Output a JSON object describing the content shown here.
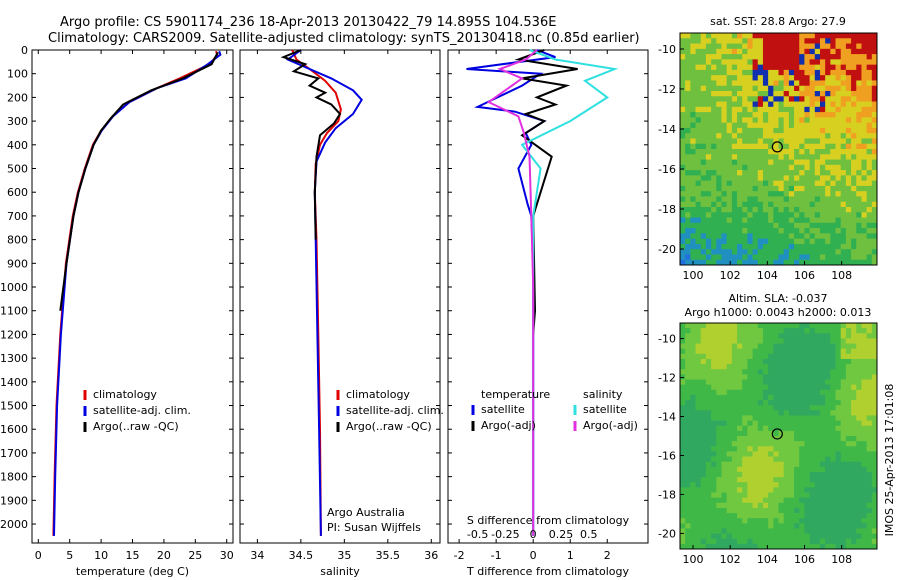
{
  "header": {
    "title_line1": "Argo profile: CS 5901174_236 18-Apr-2013 20130422_79 14.895S 104.536E",
    "title_line2": "Climatology: CARS2009. Satellite-adjusted climatology: synTS_20130418.nc (0.85d earlier)"
  },
  "colors": {
    "climatology": "#e00000",
    "satellite": "#0000e0",
    "argo": "#000000",
    "satellite_s": "#30e0e0",
    "argo_s": "#e030e0"
  },
  "chart_data": [
    {
      "type": "line",
      "id": "temperature",
      "xlabel": "temperature (deg C)",
      "ylabel": "",
      "xlim": [
        -1,
        31
      ],
      "ylim": [
        2080,
        0
      ],
      "xticks": [
        0,
        5,
        10,
        15,
        20,
        25,
        30
      ],
      "yticks": [
        0,
        100,
        200,
        300,
        400,
        500,
        600,
        700,
        800,
        900,
        1000,
        1100,
        1200,
        1300,
        1400,
        1500,
        1600,
        1700,
        1800,
        1900,
        2000
      ],
      "legend": [
        "climatology",
        "satellite-adj. clim.",
        "Argo(..raw -QC)"
      ],
      "series": [
        {
          "name": "climatology",
          "color": "#e00000",
          "x": [
            28.3,
            28.5,
            27.3,
            22.5,
            19.0,
            14.5,
            11.8,
            10.0,
            8.7,
            7.4,
            6.3,
            5.5,
            4.4,
            3.5,
            2.9,
            2.6,
            2.4
          ],
          "y": [
            5,
            20,
            60,
            120,
            160,
            220,
            280,
            340,
            400,
            500,
            600,
            700,
            900,
            1200,
            1500,
            1800,
            2050
          ]
        },
        {
          "name": "satellite-adj. clim.",
          "color": "#0000e0",
          "x": [
            28.8,
            29.0,
            27.0,
            23.5,
            19.0,
            14.5,
            11.9,
            10.1,
            8.8,
            7.5,
            6.4,
            5.6,
            4.5,
            3.6,
            3.0,
            2.7,
            2.5
          ],
          "y": [
            5,
            20,
            60,
            120,
            160,
            220,
            280,
            340,
            400,
            500,
            600,
            700,
            900,
            1200,
            1500,
            1800,
            2050
          ]
        },
        {
          "name": "Argo(..raw -QC)",
          "color": "#000000",
          "x": [
            28.6,
            28.3,
            27.6,
            23.0,
            18.0,
            13.5,
            11.5,
            10.0,
            8.8,
            7.5,
            6.4,
            5.6,
            4.5,
            3.5
          ],
          "y": [
            10,
            25,
            60,
            120,
            170,
            230,
            290,
            340,
            400,
            500,
            600,
            700,
            900,
            1100
          ]
        }
      ]
    },
    {
      "type": "line",
      "id": "salinity",
      "xlabel": "salinity",
      "ylabel": "",
      "xlim": [
        33.8,
        36.1
      ],
      "ylim": [
        2080,
        0
      ],
      "xticks": [
        34,
        34.5,
        35,
        35.5,
        36
      ],
      "legend": [
        "climatology",
        "satellite-adj. clim.",
        "Argo(..raw -QC)"
      ],
      "annotation": [
        "Argo Australia",
        "PI: Susan Wijffels"
      ],
      "series": [
        {
          "name": "climatology",
          "color": "#e00000",
          "x": [
            34.4,
            34.45,
            34.6,
            34.78,
            34.9,
            34.96,
            34.93,
            34.8,
            34.72,
            34.67,
            34.66,
            34.68,
            34.7,
            34.72,
            34.73
          ],
          "y": [
            0,
            40,
            80,
            130,
            180,
            250,
            300,
            350,
            400,
            480,
            600,
            800,
            1200,
            1600,
            2050
          ]
        },
        {
          "name": "satellite-adj. clim.",
          "color": "#0000e0",
          "x": [
            34.5,
            34.35,
            34.6,
            34.85,
            35.1,
            35.2,
            35.1,
            34.9,
            34.78,
            34.68,
            34.66,
            34.67,
            34.69,
            34.71,
            34.73
          ],
          "y": [
            0,
            40,
            80,
            120,
            170,
            210,
            270,
            330,
            390,
            470,
            600,
            800,
            1200,
            1600,
            2050
          ]
        },
        {
          "name": "Argo(..raw -QC)",
          "color": "#000000",
          "x": [
            34.5,
            34.3,
            34.55,
            34.42,
            34.7,
            34.6,
            34.78,
            34.68,
            34.85,
            34.95,
            34.88,
            34.72,
            34.68,
            34.66,
            34.67
          ],
          "y": [
            0,
            30,
            60,
            90,
            120,
            150,
            180,
            200,
            230,
            270,
            310,
            360,
            450,
            600,
            800
          ]
        }
      ]
    },
    {
      "type": "line",
      "id": "differences",
      "xlabel": "T difference from climatology",
      "xlabel2": "S difference from climatology",
      "xlim": [
        -2.3,
        3.1
      ],
      "ylim": [
        2080,
        0
      ],
      "xticks": [
        -2,
        -1,
        0,
        1,
        2
      ],
      "xticks2_labels": [
        "-0.5",
        "-0.25",
        "0",
        "0.25",
        "0.5"
      ],
      "legend_headers": [
        "temperature",
        "salinity"
      ],
      "legend": [
        "satellite",
        "Argo(-adj)",
        "satellite",
        "Argo(-adj)"
      ],
      "series": [
        {
          "name": "temperature satellite",
          "color": "#0000e0",
          "x": [
            0.1,
            0.6,
            -1.8,
            0.2,
            -0.3,
            -1.5,
            -0.5,
            0.3,
            -0.2,
            -0.05,
            -0.4,
            -0.15,
            -0.05,
            0.0,
            0.0,
            0.0
          ],
          "y": [
            0,
            30,
            80,
            100,
            150,
            240,
            260,
            300,
            350,
            400,
            500,
            650,
            700,
            900,
            1500,
            2050
          ]
        },
        {
          "name": "temperature Argo(-adj)",
          "color": "#000000",
          "x": [
            0.3,
            -0.4,
            1.2,
            -0.3,
            0.9,
            0.1,
            0.6,
            -0.2,
            0.3,
            -0.3,
            0.5,
            0.0,
            0.05,
            0.0
          ],
          "y": [
            0,
            40,
            80,
            120,
            150,
            200,
            230,
            270,
            300,
            360,
            450,
            700,
            1100,
            1200
          ]
        },
        {
          "name": "salinity satellite",
          "color": "#30e0e0",
          "x": [
            -0.1,
            0.6,
            2.2,
            1.4,
            2.0,
            1.0,
            -0.3,
            0.2,
            0.0,
            0.0
          ],
          "y": [
            0,
            40,
            80,
            130,
            200,
            300,
            400,
            500,
            700,
            2050
          ]
        },
        {
          "name": "salinity Argo(-adj)",
          "color": "#e030e0",
          "x": [
            0.1,
            -0.2,
            -0.9,
            -0.3,
            -1.2,
            -0.4,
            -0.25,
            -0.1,
            -0.05,
            0.0,
            0.0
          ],
          "y": [
            0,
            40,
            80,
            120,
            220,
            280,
            350,
            450,
            700,
            1000,
            2050
          ]
        }
      ]
    }
  ],
  "maps": {
    "sst": {
      "title": "sat. SST: 28.8 Argo: 27.9",
      "xticks": [
        100,
        102,
        104,
        106,
        108
      ],
      "yticks": [
        -10,
        -12,
        -14,
        -16,
        -18,
        -20
      ],
      "xlim": [
        99.3,
        109.9
      ],
      "ylim": [
        -20.8,
        -9.2
      ]
    },
    "sla": {
      "title_line1": "Altim. SLA: -0.037",
      "title_line2": "Argo h1000: 0.0043 h2000: 0.013",
      "xticks": [
        100,
        102,
        104,
        106,
        108
      ],
      "yticks": [
        -10,
        -12,
        -14,
        -16,
        -18,
        -20
      ],
      "xlim": [
        99.3,
        109.9
      ],
      "ylim": [
        -20.8,
        -9.2
      ]
    },
    "argo_position": {
      "lon": 104.536,
      "lat": -14.895
    }
  },
  "footer": {
    "stamp": "IMOS 25-Apr-2013 17:01:08"
  }
}
